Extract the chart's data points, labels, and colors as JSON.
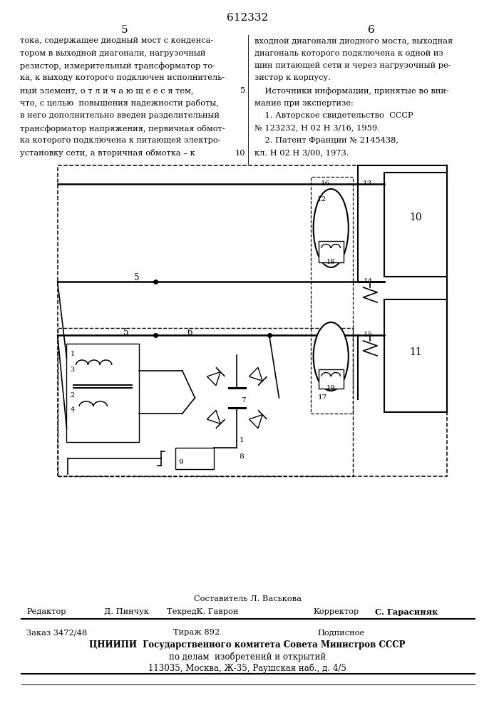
{
  "page_number": "612332",
  "col_left": "5",
  "col_right": "6",
  "text_left": [
    "тока, содержащее диодный мост с конденса-",
    "тором в выходной диагонали, нагрузочный",
    "резистор, измерительный трансформатор то-",
    "ка, к выходу которого подключен исполнитель-",
    "ный элемент, о т л и ч а ю щ е е с я тем,",
    "что, с целью  повышения надежности работы,",
    "в него дополнительно введен разделительный",
    "трансформатор напряжения, первичная обмот-",
    "ка которого подключена к питающей электро-",
    "установку сети, а вторичная обмотка – к"
  ],
  "text_right": [
    "входной диагонали диодного моста, выходная",
    "диагональ которого подключена к одной из",
    "шин питающей сети и через нагрузочный ре-",
    "зистор к корпусу.",
    "    Источники информации, принятые во вни-",
    "мание при экспертизе:",
    "    1. Авторское свидетельство  СССР",
    "№ 123232, Н 02 Н 3/16, 1959.",
    "    2. Патент Франции № 2145438,",
    "кл. Н 02 Н 3/00, 1973."
  ],
  "footer_line1_mid": "Составитель Л. Васькова",
  "footer_line1_left": "Редактор",
  "footer_line1_name1": "Д. Пинчук",
  "footer_line1_tech": "ТехредК. Гаврон",
  "footer_line1_cor": "Корректор",
  "footer_line1_name2": "С. Гарасиняк",
  "footer_line2_order": "Заказ 3472/48",
  "footer_line2_tirazh": "Тираж 892",
  "footer_line2_podp": "Подписное",
  "footer_line3": "ЦНИИПИ  Государственного комитета Совета Министров СССР",
  "footer_line4": "по делам  изобретений и открытий",
  "footer_line5": "113035, Москва, Ж-35, Раушская наб., д. 4/5",
  "bg_color": "#ffffff",
  "text_color": "#000000"
}
